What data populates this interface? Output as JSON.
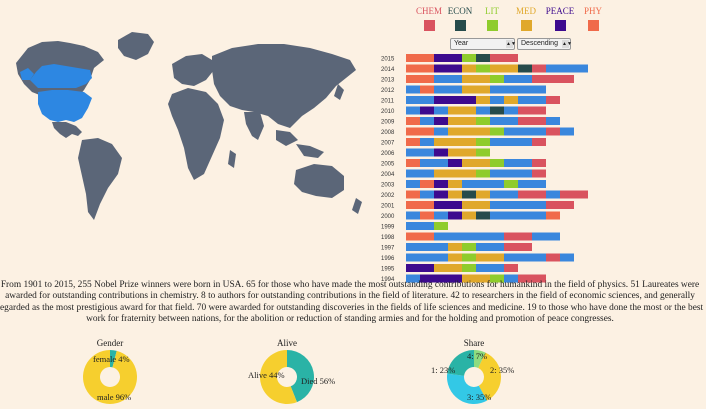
{
  "legend": [
    {
      "label": "CHEM",
      "color": "#d9535f"
    },
    {
      "label": "ECON",
      "color": "#264b4b"
    },
    {
      "label": "LIT",
      "color": "#8fcc2c"
    },
    {
      "label": "MED",
      "color": "#e0a82b"
    },
    {
      "label": "PEACE",
      "color": "#3d0a8e"
    },
    {
      "label": "PHY",
      "color": "#f06a4a"
    }
  ],
  "controls": {
    "sort_field": "Year",
    "sort_order": "Descending"
  },
  "description": "From 1901 to 2015, 255 Nobel Prize winners were born in USA. 65 for those who have made the most outstanding contributions for humankind in the field of physics. 51 Laureates were awarded for outstanding contributions in chemistry. 8 to authors for outstanding contributions in the field of literature. 42 to researchers in the field of economic sciences, and generally regarded as the most prestigious award for that field. 70 were awarded for outstanding discoveries in the fields of life sciences and medicine. 19 to those who have done the most or the best work for fraternity between nations, for the abolition or reduction of standing armies and for the holding and promotion of peace congresses.",
  "colors": {
    "map_land": "#5b6678",
    "map_selected": "#2d87e2",
    "page_bg": "#fcf1e3"
  },
  "chart_data": [
    {
      "type": "bar",
      "orientation": "horizontal",
      "stacked": true,
      "categories": [
        "2015",
        "2014",
        "2013",
        "2012",
        "2011",
        "2010",
        "2009",
        "2008",
        "2007",
        "2006",
        "2005",
        "2004",
        "2003",
        "2002",
        "2001",
        "2000",
        "1999",
        "1998",
        "1997",
        "1996",
        "1995",
        "1994"
      ],
      "series_colors": {
        "CHEM": "#d9535f",
        "ECON": "#264b4b",
        "LIT": "#8fcc2c",
        "MED": "#e0a82b",
        "PEACE": "#3d0a8e",
        "PHY": "#f06a4a",
        "OTHER": "#3a87dd"
      },
      "rows": [
        [
          [
            "PHY",
            2
          ],
          [
            "PEACE",
            2
          ],
          [
            "LIT",
            1
          ],
          [
            "ECON",
            1
          ],
          [
            "CHEM",
            2
          ]
        ],
        [
          [
            "PHY",
            2
          ],
          [
            "PEACE",
            2
          ],
          [
            "MED",
            1
          ],
          [
            "LIT",
            1
          ],
          [
            "MED",
            2
          ],
          [
            "ECON",
            1
          ],
          [
            "CHEM",
            1
          ],
          [
            "OTHER",
            3
          ]
        ],
        [
          [
            "PHY",
            2
          ],
          [
            "OTHER",
            2
          ],
          [
            "MED",
            2
          ],
          [
            "LIT",
            1
          ],
          [
            "OTHER",
            2
          ],
          [
            "CHEM",
            3
          ]
        ],
        [
          [
            "OTHER",
            1
          ],
          [
            "PHY",
            1
          ],
          [
            "OTHER",
            2
          ],
          [
            "MED",
            2
          ],
          [
            "OTHER",
            4
          ]
        ],
        [
          [
            "OTHER",
            2
          ],
          [
            "PEACE",
            3
          ],
          [
            "MED",
            1
          ],
          [
            "OTHER",
            1
          ],
          [
            "MED",
            1
          ],
          [
            "OTHER",
            2
          ],
          [
            "CHEM",
            1
          ]
        ],
        [
          [
            "OTHER",
            1
          ],
          [
            "PEACE",
            1
          ],
          [
            "OTHER",
            1
          ],
          [
            "MED",
            2
          ],
          [
            "OTHER",
            1
          ],
          [
            "ECON",
            1
          ],
          [
            "OTHER",
            1
          ],
          [
            "CHEM",
            2
          ]
        ],
        [
          [
            "PHY",
            1
          ],
          [
            "OTHER",
            1
          ],
          [
            "PEACE",
            1
          ],
          [
            "MED",
            2
          ],
          [
            "LIT",
            1
          ],
          [
            "OTHER",
            2
          ],
          [
            "CHEM",
            2
          ],
          [
            "OTHER",
            1
          ]
        ],
        [
          [
            "PHY",
            2
          ],
          [
            "OTHER",
            1
          ],
          [
            "MED",
            3
          ],
          [
            "LIT",
            1
          ],
          [
            "OTHER",
            3
          ],
          [
            "CHEM",
            1
          ],
          [
            "OTHER",
            1
          ]
        ],
        [
          [
            "PHY",
            1
          ],
          [
            "OTHER",
            1
          ],
          [
            "MED",
            3
          ],
          [
            "LIT",
            1
          ],
          [
            "OTHER",
            3
          ],
          [
            "CHEM",
            1
          ]
        ],
        [
          [
            "OTHER",
            2
          ],
          [
            "PEACE",
            1
          ],
          [
            "MED",
            2
          ],
          [
            "LIT",
            1
          ]
        ],
        [
          [
            "PHY",
            1
          ],
          [
            "OTHER",
            2
          ],
          [
            "PEACE",
            1
          ],
          [
            "MED",
            2
          ],
          [
            "LIT",
            1
          ],
          [
            "OTHER",
            2
          ],
          [
            "CHEM",
            1
          ]
        ],
        [
          [
            "OTHER",
            2
          ],
          [
            "MED",
            3
          ],
          [
            "LIT",
            1
          ],
          [
            "OTHER",
            3
          ],
          [
            "CHEM",
            1
          ]
        ],
        [
          [
            "OTHER",
            1
          ],
          [
            "PHY",
            1
          ],
          [
            "PEACE",
            1
          ],
          [
            "MED",
            1
          ],
          [
            "OTHER",
            3
          ],
          [
            "LIT",
            1
          ],
          [
            "OTHER",
            2
          ]
        ],
        [
          [
            "PHY",
            1
          ],
          [
            "OTHER",
            1
          ],
          [
            "PEACE",
            1
          ],
          [
            "MED",
            1
          ],
          [
            "ECON",
            1
          ],
          [
            "MED",
            1
          ],
          [
            "OTHER",
            2
          ],
          [
            "CHEM",
            2
          ],
          [
            "OTHER",
            1
          ],
          [
            "CHEM",
            2
          ]
        ],
        [
          [
            "PHY",
            2
          ],
          [
            "PEACE",
            2
          ],
          [
            "MED",
            2
          ],
          [
            "OTHER",
            4
          ],
          [
            "CHEM",
            2
          ]
        ],
        [
          [
            "OTHER",
            1
          ],
          [
            "PHY",
            1
          ],
          [
            "OTHER",
            1
          ],
          [
            "PEACE",
            1
          ],
          [
            "MED",
            1
          ],
          [
            "ECON",
            1
          ],
          [
            "OTHER",
            4
          ],
          [
            "PHY",
            1
          ]
        ],
        [
          [
            "OTHER",
            2
          ],
          [
            "LIT",
            1
          ]
        ],
        [
          [
            "PHY",
            2
          ],
          [
            "OTHER",
            5
          ],
          [
            "CHEM",
            2
          ],
          [
            "OTHER",
            2
          ]
        ],
        [
          [
            "OTHER",
            3
          ],
          [
            "MED",
            1
          ],
          [
            "LIT",
            1
          ],
          [
            "OTHER",
            2
          ],
          [
            "CHEM",
            2
          ]
        ],
        [
          [
            "OTHER",
            3
          ],
          [
            "MED",
            1
          ],
          [
            "LIT",
            1
          ],
          [
            "MED",
            2
          ],
          [
            "OTHER",
            3
          ],
          [
            "CHEM",
            1
          ],
          [
            "OTHER",
            1
          ]
        ],
        [
          [
            "PEACE",
            2
          ],
          [
            "MED",
            2
          ],
          [
            "LIT",
            1
          ],
          [
            "OTHER",
            2
          ],
          [
            "CHEM",
            1
          ]
        ],
        [
          [
            "OTHER",
            1
          ],
          [
            "PEACE",
            3
          ],
          [
            "MED",
            2
          ],
          [
            "LIT",
            1
          ],
          [
            "OTHER",
            1
          ],
          [
            "CHEM",
            2
          ]
        ]
      ]
    },
    {
      "type": "pie",
      "title": "Gender",
      "slices": [
        {
          "label": "female",
          "percent": 4,
          "color": "#2ab3a6"
        },
        {
          "label": "male",
          "percent": 96,
          "color": "#f6cf2e"
        }
      ]
    },
    {
      "type": "pie",
      "title": "Alive",
      "slices": [
        {
          "label": "Alive",
          "percent": 44,
          "color": "#2ab3a6"
        },
        {
          "label": "Died",
          "percent": 56,
          "color": "#f6cf2e"
        }
      ]
    },
    {
      "type": "pie",
      "title": "Share",
      "slices": [
        {
          "label": "4",
          "percent": 7,
          "color": "#8edc7f"
        },
        {
          "label": "2",
          "percent": 35,
          "color": "#f6cf2e"
        },
        {
          "label": "3",
          "percent": 35,
          "color": "#33c8e6"
        },
        {
          "label": "1",
          "percent": 23,
          "color": "#2ab3a6"
        }
      ]
    }
  ]
}
